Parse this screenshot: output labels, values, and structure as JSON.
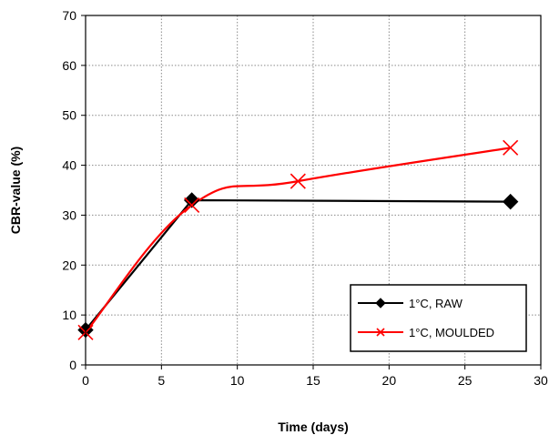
{
  "chart_data": {
    "type": "line",
    "title": "",
    "xlabel": "Time (days)",
    "ylabel": "CBR-value (%)",
    "xlim": [
      0,
      30
    ],
    "ylim": [
      0,
      70
    ],
    "x_ticks": [
      "0",
      "5",
      "10",
      "15",
      "20",
      "25",
      "30"
    ],
    "y_ticks": [
      "0",
      "10",
      "20",
      "30",
      "40",
      "50",
      "60",
      "70"
    ],
    "grid": "dotted, both axes",
    "legend_position": "bottom-right",
    "series": [
      {
        "name": "1°C, RAW",
        "color": "#000000",
        "marker": "diamond",
        "curve": "straight",
        "x": [
          0,
          7,
          28
        ],
        "y": [
          7,
          33,
          32.7
        ]
      },
      {
        "name": "1°C, MOULDED",
        "color": "#ff0000",
        "marker": "x",
        "curve": "smooth",
        "x": [
          0,
          7,
          14,
          28
        ],
        "y": [
          6.5,
          32,
          36.8,
          43.5
        ]
      }
    ]
  }
}
